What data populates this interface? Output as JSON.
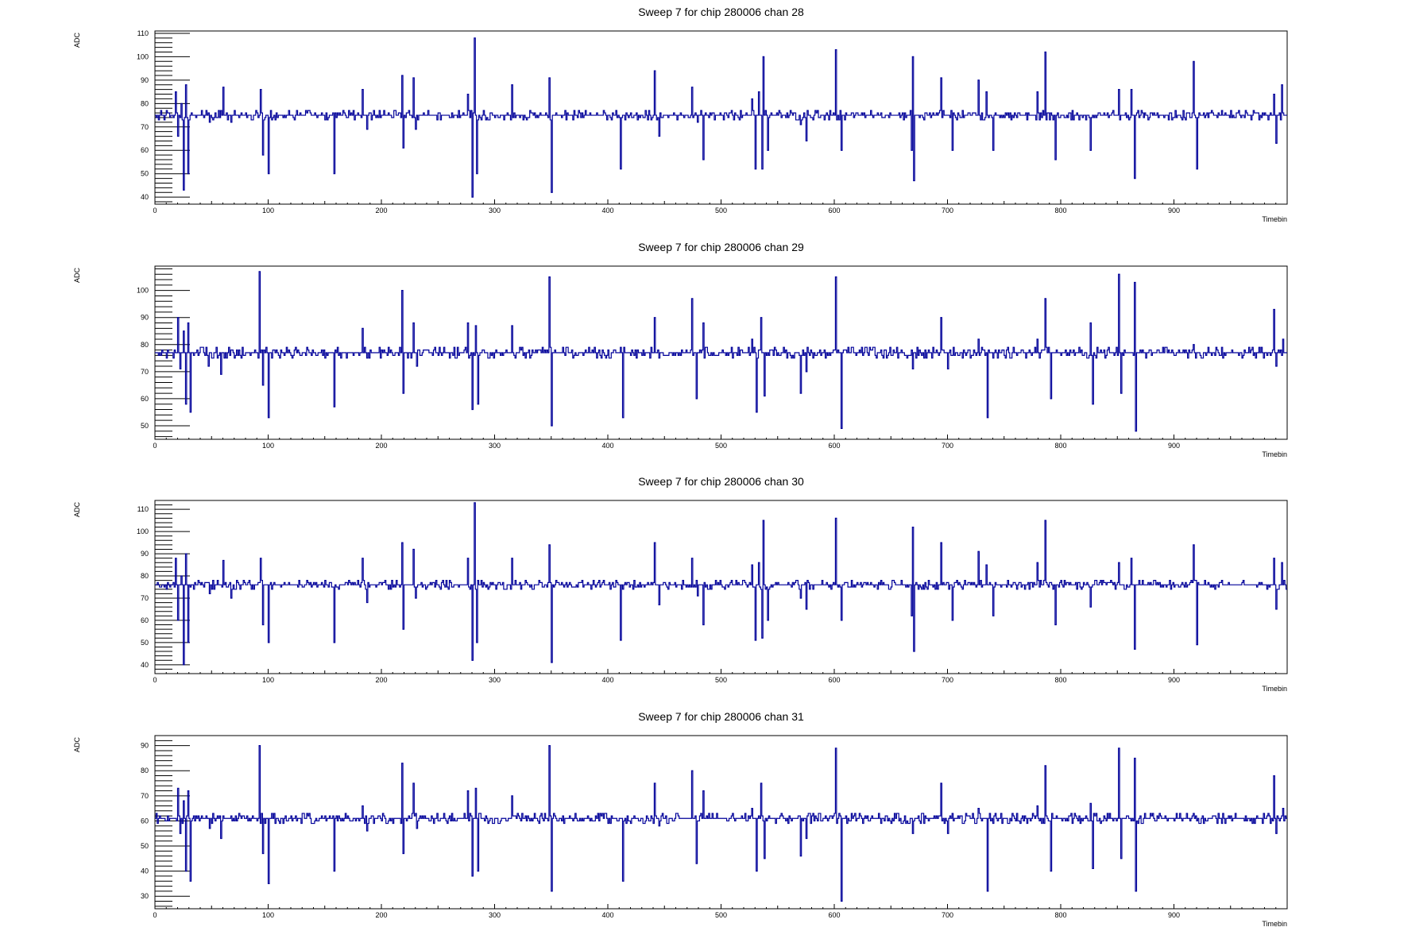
{
  "colors": {
    "line": "#000099",
    "frame": "#000000",
    "background": "#ffffff"
  },
  "chart_data": [
    {
      "type": "line",
      "title": "Sweep 7 for chip 280006 chan 28",
      "xlabel": "Timebin",
      "ylabel": "ADC",
      "xlim": [
        0,
        1000
      ],
      "ylim": [
        37,
        111
      ],
      "xticks": [
        0,
        100,
        200,
        300,
        400,
        500,
        600,
        700,
        800,
        900
      ],
      "xtick_labels": [
        "0",
        "100",
        "200",
        "300",
        "400",
        "500",
        "600",
        "700",
        "800",
        "900"
      ],
      "yticks": [
        40,
        50,
        60,
        70,
        80,
        90,
        100,
        110
      ],
      "ytick_labels": [
        "40",
        "50",
        "60",
        "70",
        "80",
        "90",
        "100",
        "110"
      ],
      "baseline": 75,
      "spikes": [
        [
          18,
          85
        ],
        [
          20,
          66
        ],
        [
          23,
          80
        ],
        [
          25,
          43
        ],
        [
          27,
          88
        ],
        [
          29,
          50
        ],
        [
          48,
          72
        ],
        [
          60,
          87
        ],
        [
          67,
          72
        ],
        [
          93,
          86
        ],
        [
          95,
          58
        ],
        [
          100,
          50
        ],
        [
          158,
          50
        ],
        [
          183,
          86
        ],
        [
          187,
          69
        ],
        [
          218,
          92
        ],
        [
          219,
          61
        ],
        [
          228,
          91
        ],
        [
          230,
          69
        ],
        [
          276,
          84
        ],
        [
          280,
          40
        ],
        [
          282,
          108
        ],
        [
          284,
          50
        ],
        [
          315,
          88
        ],
        [
          348,
          91
        ],
        [
          350,
          42
        ],
        [
          411,
          52
        ],
        [
          441,
          94
        ],
        [
          445,
          66
        ],
        [
          474,
          87
        ],
        [
          479,
          72
        ],
        [
          484,
          56
        ],
        [
          527,
          82
        ],
        [
          530,
          52
        ],
        [
          533,
          85
        ],
        [
          536,
          52
        ],
        [
          537,
          100
        ],
        [
          541,
          60
        ],
        [
          570,
          71
        ],
        [
          575,
          64
        ],
        [
          601,
          103
        ],
        [
          606,
          60
        ],
        [
          669,
          100
        ],
        [
          670,
          47
        ],
        [
          668,
          60
        ],
        [
          694,
          91
        ],
        [
          704,
          60
        ],
        [
          727,
          90
        ],
        [
          734,
          85
        ],
        [
          740,
          60
        ],
        [
          779,
          85
        ],
        [
          786,
          102
        ],
        [
          795,
          56
        ],
        [
          826,
          60
        ],
        [
          851,
          86
        ],
        [
          862,
          86
        ],
        [
          865,
          48
        ],
        [
          917,
          98
        ],
        [
          920,
          52
        ],
        [
          988,
          84
        ],
        [
          990,
          63
        ],
        [
          995,
          88
        ],
        [
          1000,
          75
        ]
      ],
      "grid": false,
      "legend": "none"
    },
    {
      "type": "line",
      "title": "Sweep 7 for chip 280006 chan 29",
      "xlabel": "Timebin",
      "ylabel": "ADC",
      "xlim": [
        0,
        1000
      ],
      "ylim": [
        45,
        109
      ],
      "xticks": [
        0,
        100,
        200,
        300,
        400,
        500,
        600,
        700,
        800,
        900
      ],
      "xtick_labels": [
        "0",
        "100",
        "200",
        "300",
        "400",
        "500",
        "600",
        "700",
        "800",
        "900"
      ],
      "yticks": [
        50,
        60,
        70,
        80,
        90,
        100
      ],
      "ytick_labels": [
        "50",
        "60",
        "70",
        "80",
        "90",
        "100"
      ],
      "baseline": 77,
      "spikes": [
        [
          20,
          90
        ],
        [
          22,
          71
        ],
        [
          25,
          85
        ],
        [
          27,
          58
        ],
        [
          29,
          88
        ],
        [
          31,
          55
        ],
        [
          47,
          72
        ],
        [
          58,
          69
        ],
        [
          92,
          107
        ],
        [
          95,
          65
        ],
        [
          100,
          53
        ],
        [
          158,
          57
        ],
        [
          183,
          86
        ],
        [
          187,
          75
        ],
        [
          218,
          100
        ],
        [
          219,
          62
        ],
        [
          228,
          88
        ],
        [
          231,
          72
        ],
        [
          276,
          88
        ],
        [
          280,
          56
        ],
        [
          283,
          87
        ],
        [
          285,
          58
        ],
        [
          315,
          87
        ],
        [
          348,
          105
        ],
        [
          350,
          50
        ],
        [
          413,
          53
        ],
        [
          441,
          90
        ],
        [
          445,
          75
        ],
        [
          474,
          97
        ],
        [
          478,
          60
        ],
        [
          484,
          88
        ],
        [
          527,
          82
        ],
        [
          531,
          55
        ],
        [
          535,
          90
        ],
        [
          538,
          61
        ],
        [
          540,
          76
        ],
        [
          570,
          62
        ],
        [
          575,
          70
        ],
        [
          601,
          105
        ],
        [
          606,
          49
        ],
        [
          669,
          71
        ],
        [
          694,
          90
        ],
        [
          700,
          71
        ],
        [
          727,
          82
        ],
        [
          735,
          53
        ],
        [
          740,
          75
        ],
        [
          779,
          82
        ],
        [
          786,
          97
        ],
        [
          791,
          60
        ],
        [
          826,
          88
        ],
        [
          828,
          58
        ],
        [
          851,
          106
        ],
        [
          853,
          62
        ],
        [
          865,
          103
        ],
        [
          866,
          48
        ],
        [
          917,
          80
        ],
        [
          988,
          93
        ],
        [
          990,
          72
        ],
        [
          996,
          82
        ],
        [
          1000,
          77
        ]
      ],
      "grid": false,
      "legend": "none"
    },
    {
      "type": "line",
      "title": "Sweep 7 for chip 280006 chan 30",
      "xlabel": "Timebin",
      "ylabel": "ADC",
      "xlim": [
        0,
        1000
      ],
      "ylim": [
        36,
        114
      ],
      "xticks": [
        0,
        100,
        200,
        300,
        400,
        500,
        600,
        700,
        800,
        900
      ],
      "xtick_labels": [
        "0",
        "100",
        "200",
        "300",
        "400",
        "500",
        "600",
        "700",
        "800",
        "900"
      ],
      "yticks": [
        40,
        50,
        60,
        70,
        80,
        90,
        100,
        110
      ],
      "ytick_labels": [
        "40",
        "50",
        "60",
        "70",
        "80",
        "90",
        "100",
        "110"
      ],
      "baseline": 76,
      "spikes": [
        [
          18,
          88
        ],
        [
          20,
          60
        ],
        [
          23,
          80
        ],
        [
          25,
          40
        ],
        [
          27,
          90
        ],
        [
          29,
          50
        ],
        [
          48,
          72
        ],
        [
          60,
          87
        ],
        [
          67,
          70
        ],
        [
          93,
          88
        ],
        [
          95,
          58
        ],
        [
          100,
          50
        ],
        [
          158,
          50
        ],
        [
          183,
          88
        ],
        [
          187,
          68
        ],
        [
          218,
          95
        ],
        [
          219,
          56
        ],
        [
          228,
          92
        ],
        [
          230,
          70
        ],
        [
          276,
          88
        ],
        [
          280,
          42
        ],
        [
          282,
          113
        ],
        [
          284,
          50
        ],
        [
          315,
          88
        ],
        [
          348,
          94
        ],
        [
          350,
          41
        ],
        [
          411,
          51
        ],
        [
          441,
          95
        ],
        [
          445,
          67
        ],
        [
          474,
          88
        ],
        [
          479,
          71
        ],
        [
          484,
          58
        ],
        [
          527,
          85
        ],
        [
          530,
          51
        ],
        [
          533,
          86
        ],
        [
          536,
          52
        ],
        [
          537,
          105
        ],
        [
          541,
          60
        ],
        [
          570,
          70
        ],
        [
          575,
          65
        ],
        [
          601,
          106
        ],
        [
          606,
          60
        ],
        [
          669,
          102
        ],
        [
          670,
          46
        ],
        [
          668,
          62
        ],
        [
          694,
          95
        ],
        [
          704,
          60
        ],
        [
          727,
          91
        ],
        [
          734,
          85
        ],
        [
          740,
          62
        ],
        [
          779,
          86
        ],
        [
          786,
          105
        ],
        [
          795,
          58
        ],
        [
          826,
          66
        ],
        [
          851,
          86
        ],
        [
          862,
          88
        ],
        [
          865,
          47
        ],
        [
          917,
          94
        ],
        [
          920,
          49
        ],
        [
          988,
          88
        ],
        [
          990,
          65
        ],
        [
          995,
          86
        ],
        [
          1000,
          74
        ]
      ],
      "grid": false,
      "legend": "none"
    },
    {
      "type": "line",
      "title": "Sweep 7 for chip 280006 chan 31",
      "xlabel": "Timebin",
      "ylabel": "ADC",
      "xlim": [
        0,
        1000
      ],
      "ylim": [
        25,
        94
      ],
      "xticks": [
        0,
        100,
        200,
        300,
        400,
        500,
        600,
        700,
        800,
        900
      ],
      "xtick_labels": [
        "0",
        "100",
        "200",
        "300",
        "400",
        "500",
        "600",
        "700",
        "800",
        "900"
      ],
      "yticks": [
        30,
        40,
        50,
        60,
        70,
        80,
        90
      ],
      "ytick_labels": [
        "30",
        "40",
        "50",
        "60",
        "70",
        "80",
        "90"
      ],
      "baseline": 61,
      "spikes": [
        [
          20,
          73
        ],
        [
          22,
          55
        ],
        [
          25,
          68
        ],
        [
          27,
          40
        ],
        [
          29,
          72
        ],
        [
          31,
          36
        ],
        [
          48,
          57
        ],
        [
          58,
          53
        ],
        [
          92,
          90
        ],
        [
          95,
          47
        ],
        [
          100,
          35
        ],
        [
          158,
          40
        ],
        [
          183,
          66
        ],
        [
          187,
          56
        ],
        [
          218,
          83
        ],
        [
          219,
          47
        ],
        [
          228,
          75
        ],
        [
          231,
          57
        ],
        [
          276,
          72
        ],
        [
          280,
          38
        ],
        [
          283,
          73
        ],
        [
          285,
          40
        ],
        [
          315,
          70
        ],
        [
          348,
          90
        ],
        [
          350,
          32
        ],
        [
          413,
          36
        ],
        [
          441,
          75
        ],
        [
          445,
          58
        ],
        [
          474,
          80
        ],
        [
          478,
          43
        ],
        [
          484,
          72
        ],
        [
          527,
          65
        ],
        [
          531,
          40
        ],
        [
          535,
          75
        ],
        [
          538,
          45
        ],
        [
          540,
          60
        ],
        [
          570,
          46
        ],
        [
          575,
          53
        ],
        [
          601,
          89
        ],
        [
          606,
          28
        ],
        [
          669,
          55
        ],
        [
          694,
          75
        ],
        [
          700,
          55
        ],
        [
          727,
          65
        ],
        [
          735,
          32
        ],
        [
          740,
          59
        ],
        [
          779,
          66
        ],
        [
          786,
          82
        ],
        [
          791,
          40
        ],
        [
          826,
          67
        ],
        [
          828,
          41
        ],
        [
          851,
          89
        ],
        [
          853,
          45
        ],
        [
          865,
          85
        ],
        [
          866,
          32
        ],
        [
          917,
          63
        ],
        [
          988,
          78
        ],
        [
          990,
          55
        ],
        [
          996,
          65
        ],
        [
          1000,
          61
        ]
      ],
      "grid": false,
      "legend": "none"
    }
  ]
}
